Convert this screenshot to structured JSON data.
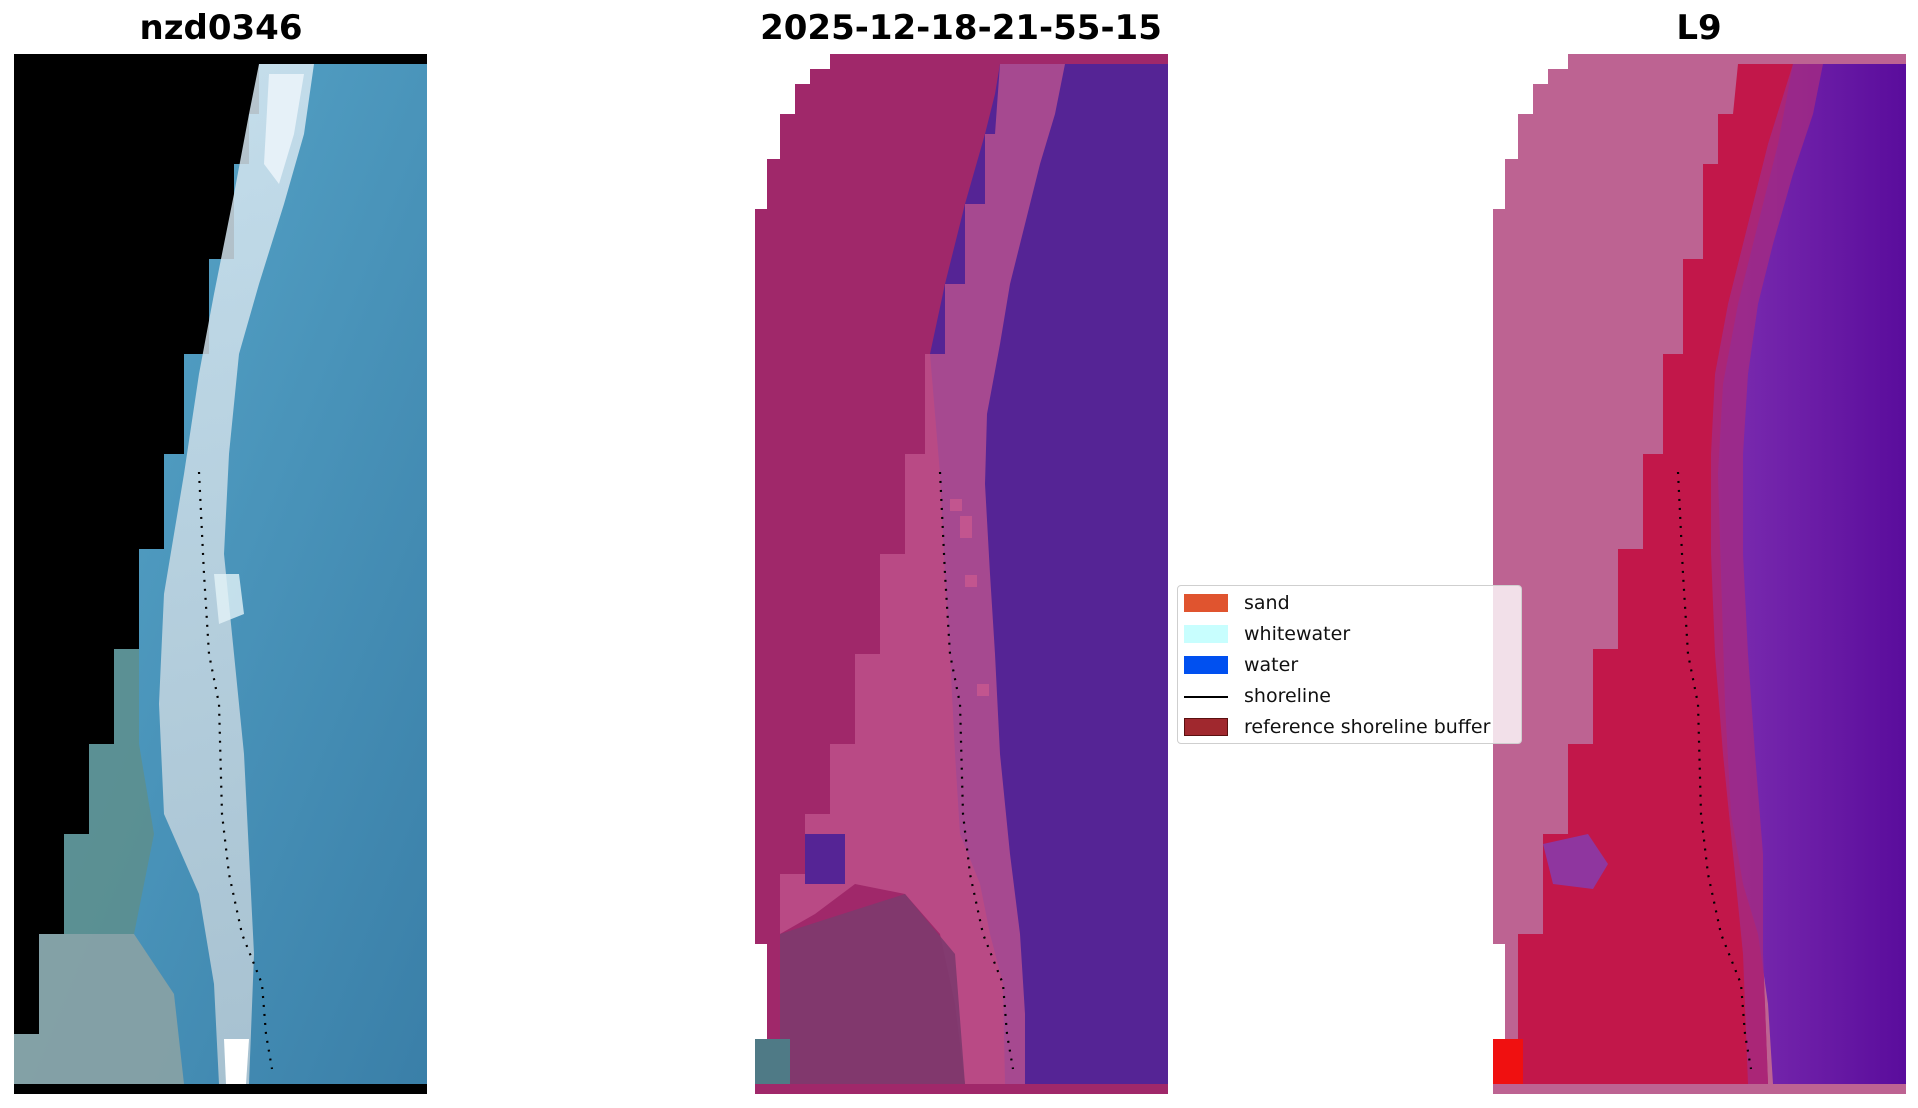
{
  "panels": [
    {
      "title": "nzd0346"
    },
    {
      "title": "2025-12-18-21-55-15"
    },
    {
      "title": "L9"
    }
  ],
  "legend": {
    "items": [
      {
        "label": "sand",
        "color": "#e0542f",
        "kind": "patch"
      },
      {
        "label": "whitewater",
        "color": "#c8fefe",
        "kind": "patch"
      },
      {
        "label": "water",
        "color": "#0050f0",
        "kind": "patch"
      },
      {
        "label": "shoreline",
        "color": "#000000",
        "kind": "line"
      },
      {
        "label": "reference shoreline buffer",
        "color": "#a0282e",
        "kind": "patch",
        "edge": "#5a1010"
      }
    ]
  },
  "colors": {
    "land_mask": "#000000",
    "rgb_sea": "#4a90b8",
    "rgb_surf": "#c8dfe8",
    "class_land": "#a0286a",
    "class_sea": "#552495",
    "index_land": "#bd6392",
    "index_sea": "#5c0ea0",
    "index_beach": "#c2174a"
  }
}
